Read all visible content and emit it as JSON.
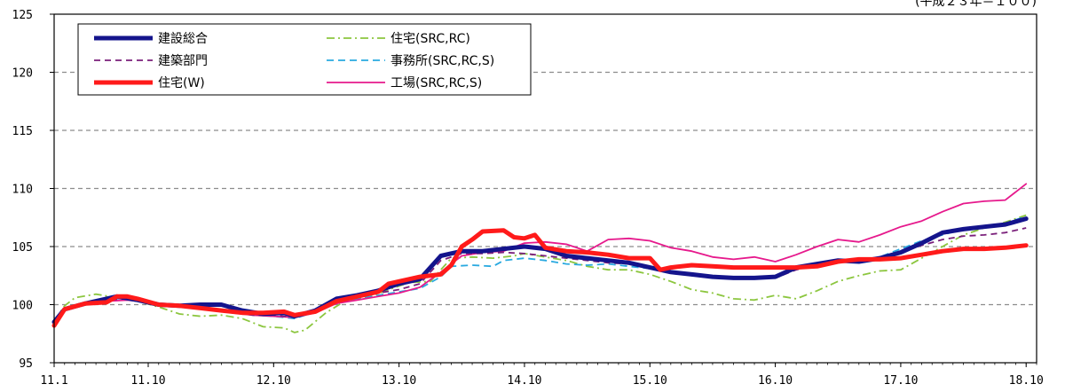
{
  "top_note": "(平成２３年＝１００)",
  "chart_data": {
    "type": "line",
    "title": "",
    "xlabel": "",
    "ylabel": "",
    "ylim": [
      95,
      125
    ],
    "yticks": [
      95,
      100,
      105,
      110,
      115,
      120,
      125
    ],
    "xlim": [
      0,
      94
    ],
    "xticks": [
      {
        "label": "11.1",
        "x": 0
      },
      {
        "label": "11.10",
        "x": 9
      },
      {
        "label": "12.10",
        "x": 21
      },
      {
        "label": "13.10",
        "x": 33
      },
      {
        "label": "14.10",
        "x": 45
      },
      {
        "label": "15.10",
        "x": 57
      },
      {
        "label": "16.10",
        "x": 69
      },
      {
        "label": "17.10",
        "x": 81
      },
      {
        "label": "18.10",
        "x": 93
      }
    ],
    "grid": "horizontal-dashed",
    "legend_position": "top-left",
    "series": [
      {
        "name": "建設総合",
        "color": "#14148c",
        "width": 5,
        "dash": "",
        "points": [
          [
            0,
            98.5
          ],
          [
            1,
            99.6
          ],
          [
            3,
            100.1
          ],
          [
            5,
            100.5
          ],
          [
            6,
            100.7
          ],
          [
            8,
            100.4
          ],
          [
            10,
            100.0
          ],
          [
            12,
            99.9
          ],
          [
            14,
            100.0
          ],
          [
            16,
            100.0
          ],
          [
            18,
            99.5
          ],
          [
            20,
            99.2
          ],
          [
            22,
            99.3
          ],
          [
            23,
            99.0
          ],
          [
            25,
            99.5
          ],
          [
            27,
            100.5
          ],
          [
            29,
            100.8
          ],
          [
            31,
            101.2
          ],
          [
            33,
            101.8
          ],
          [
            35,
            102.2
          ],
          [
            37,
            104.2
          ],
          [
            39,
            104.6
          ],
          [
            41,
            104.6
          ],
          [
            43,
            104.8
          ],
          [
            45,
            105.0
          ],
          [
            47,
            104.8
          ],
          [
            49,
            104.2
          ],
          [
            51,
            104.0
          ],
          [
            53,
            103.8
          ],
          [
            55,
            103.6
          ],
          [
            57,
            103.2
          ],
          [
            59,
            102.8
          ],
          [
            61,
            102.6
          ],
          [
            63,
            102.4
          ],
          [
            65,
            102.3
          ],
          [
            67,
            102.3
          ],
          [
            69,
            102.4
          ],
          [
            71,
            103.2
          ],
          [
            73,
            103.5
          ],
          [
            75,
            103.8
          ],
          [
            77,
            103.7
          ],
          [
            79,
            104.0
          ],
          [
            81,
            104.5
          ],
          [
            83,
            105.3
          ],
          [
            85,
            106.2
          ],
          [
            87,
            106.5
          ],
          [
            89,
            106.7
          ],
          [
            91,
            106.9
          ],
          [
            93,
            107.4
          ]
        ]
      },
      {
        "name": "建築部門",
        "color": "#7a1f7a",
        "width": 1.8,
        "dash": "7,5",
        "points": [
          [
            0,
            98.5
          ],
          [
            1,
            99.6
          ],
          [
            3,
            100.1
          ],
          [
            5,
            100.4
          ],
          [
            7,
            100.5
          ],
          [
            9,
            100.2
          ],
          [
            11,
            100.0
          ],
          [
            13,
            99.8
          ],
          [
            15,
            99.6
          ],
          [
            17,
            99.4
          ],
          [
            19,
            99.1
          ],
          [
            21,
            99.1
          ],
          [
            23,
            98.9
          ],
          [
            25,
            99.5
          ],
          [
            27,
            100.3
          ],
          [
            29,
            100.6
          ],
          [
            31,
            101.0
          ],
          [
            33,
            101.3
          ],
          [
            35,
            101.8
          ],
          [
            37,
            103.8
          ],
          [
            39,
            104.4
          ],
          [
            41,
            104.4
          ],
          [
            43,
            104.5
          ],
          [
            45,
            104.4
          ],
          [
            47,
            104.2
          ],
          [
            49,
            104.0
          ],
          [
            51,
            103.8
          ],
          [
            53,
            103.6
          ],
          [
            55,
            103.5
          ],
          [
            57,
            103.2
          ],
          [
            59,
            102.8
          ],
          [
            61,
            102.5
          ],
          [
            63,
            102.3
          ],
          [
            65,
            102.3
          ],
          [
            67,
            102.3
          ],
          [
            69,
            102.3
          ],
          [
            71,
            103.0
          ],
          [
            73,
            103.4
          ],
          [
            75,
            103.7
          ],
          [
            77,
            103.7
          ],
          [
            79,
            104.0
          ],
          [
            81,
            104.5
          ],
          [
            83,
            105.1
          ],
          [
            85,
            105.6
          ],
          [
            87,
            105.9
          ],
          [
            89,
            106.0
          ],
          [
            91,
            106.2
          ],
          [
            93,
            106.6
          ]
        ]
      },
      {
        "name": "住宅(W)",
        "color": "#ff1a1a",
        "width": 5,
        "dash": "",
        "points": [
          [
            0,
            98.2
          ],
          [
            1,
            99.6
          ],
          [
            3,
            100.1
          ],
          [
            5,
            100.2
          ],
          [
            6,
            100.7
          ],
          [
            7,
            100.7
          ],
          [
            8,
            100.5
          ],
          [
            10,
            100.0
          ],
          [
            12,
            99.9
          ],
          [
            14,
            99.7
          ],
          [
            16,
            99.5
          ],
          [
            18,
            99.3
          ],
          [
            20,
            99.3
          ],
          [
            22,
            99.4
          ],
          [
            23,
            99.1
          ],
          [
            25,
            99.4
          ],
          [
            27,
            100.3
          ],
          [
            29,
            100.7
          ],
          [
            31,
            101.1
          ],
          [
            32,
            101.8
          ],
          [
            33,
            102.0
          ],
          [
            35,
            102.4
          ],
          [
            37,
            102.6
          ],
          [
            38,
            103.4
          ],
          [
            39,
            105.0
          ],
          [
            40,
            105.6
          ],
          [
            41,
            106.3
          ],
          [
            43,
            106.4
          ],
          [
            44,
            105.8
          ],
          [
            45,
            105.7
          ],
          [
            46,
            106.0
          ],
          [
            47,
            104.9
          ],
          [
            49,
            104.6
          ],
          [
            51,
            104.5
          ],
          [
            53,
            104.3
          ],
          [
            55,
            104.0
          ],
          [
            57,
            104.0
          ],
          [
            58,
            103.0
          ],
          [
            59,
            103.2
          ],
          [
            61,
            103.4
          ],
          [
            63,
            103.3
          ],
          [
            65,
            103.2
          ],
          [
            67,
            103.2
          ],
          [
            69,
            103.2
          ],
          [
            71,
            103.2
          ],
          [
            73,
            103.3
          ],
          [
            75,
            103.7
          ],
          [
            77,
            103.9
          ],
          [
            79,
            103.9
          ],
          [
            81,
            104.0
          ],
          [
            83,
            104.3
          ],
          [
            85,
            104.6
          ],
          [
            87,
            104.8
          ],
          [
            89,
            104.8
          ],
          [
            91,
            104.9
          ],
          [
            93,
            105.1
          ]
        ]
      },
      {
        "name": "住宅(SRC,RC)",
        "color": "#8cc63f",
        "width": 1.8,
        "dash": "9,4,2,4",
        "points": [
          [
            0,
            98.6
          ],
          [
            1,
            99.9
          ],
          [
            2,
            100.6
          ],
          [
            4,
            100.9
          ],
          [
            6,
            100.6
          ],
          [
            8,
            100.3
          ],
          [
            10,
            99.8
          ],
          [
            12,
            99.2
          ],
          [
            14,
            99.0
          ],
          [
            16,
            99.1
          ],
          [
            18,
            98.8
          ],
          [
            20,
            98.1
          ],
          [
            22,
            98.0
          ],
          [
            23,
            97.6
          ],
          [
            24,
            97.8
          ],
          [
            26,
            99.3
          ],
          [
            28,
            100.4
          ],
          [
            30,
            100.6
          ],
          [
            32,
            101.3
          ],
          [
            34,
            101.9
          ],
          [
            36,
            102.0
          ],
          [
            38,
            104.0
          ],
          [
            40,
            104.1
          ],
          [
            42,
            104.0
          ],
          [
            44,
            104.2
          ],
          [
            45,
            104.4
          ],
          [
            47,
            104.1
          ],
          [
            49,
            103.8
          ],
          [
            51,
            103.3
          ],
          [
            53,
            103.0
          ],
          [
            55,
            103.0
          ],
          [
            57,
            102.6
          ],
          [
            59,
            102.0
          ],
          [
            61,
            101.3
          ],
          [
            63,
            101.0
          ],
          [
            65,
            100.5
          ],
          [
            67,
            100.4
          ],
          [
            69,
            100.8
          ],
          [
            71,
            100.5
          ],
          [
            73,
            101.2
          ],
          [
            75,
            102.0
          ],
          [
            77,
            102.5
          ],
          [
            79,
            102.9
          ],
          [
            81,
            103.0
          ],
          [
            83,
            104.0
          ],
          [
            85,
            105.0
          ],
          [
            87,
            106.0
          ],
          [
            89,
            106.6
          ],
          [
            91,
            107.1
          ],
          [
            93,
            107.7
          ]
        ]
      },
      {
        "name": "事務所(SRC,RC,S)",
        "color": "#29a9e0",
        "width": 1.8,
        "dash": "8,5",
        "points": [
          [
            0,
            98.5
          ],
          [
            1,
            99.6
          ],
          [
            3,
            100.0
          ],
          [
            5,
            100.4
          ],
          [
            7,
            100.6
          ],
          [
            9,
            100.3
          ],
          [
            11,
            100.0
          ],
          [
            13,
            99.8
          ],
          [
            15,
            99.6
          ],
          [
            17,
            99.4
          ],
          [
            19,
            99.1
          ],
          [
            21,
            99.0
          ],
          [
            23,
            98.8
          ],
          [
            25,
            99.4
          ],
          [
            27,
            100.2
          ],
          [
            29,
            100.5
          ],
          [
            31,
            100.8
          ],
          [
            33,
            101.1
          ],
          [
            35,
            101.4
          ],
          [
            37,
            102.4
          ],
          [
            38,
            103.3
          ],
          [
            40,
            103.4
          ],
          [
            42,
            103.3
          ],
          [
            43,
            103.8
          ],
          [
            45,
            104.0
          ],
          [
            47,
            103.8
          ],
          [
            49,
            103.5
          ],
          [
            51,
            103.4
          ],
          [
            53,
            103.5
          ],
          [
            55,
            103.3
          ],
          [
            57,
            103.1
          ],
          [
            59,
            102.9
          ],
          [
            61,
            102.6
          ],
          [
            63,
            102.4
          ],
          [
            65,
            102.3
          ],
          [
            67,
            102.4
          ],
          [
            69,
            102.5
          ],
          [
            71,
            103.2
          ],
          [
            73,
            103.6
          ],
          [
            75,
            103.8
          ],
          [
            77,
            103.8
          ],
          [
            79,
            104.1
          ],
          [
            81,
            104.8
          ],
          [
            83,
            105.5
          ],
          [
            85,
            106.0
          ],
          [
            87,
            106.5
          ],
          [
            89,
            106.8
          ],
          [
            91,
            107.0
          ],
          [
            93,
            107.6
          ]
        ]
      },
      {
        "name": "工場(SRC,RC,S)",
        "color": "#e6198c",
        "width": 1.8,
        "dash": "",
        "points": [
          [
            0,
            98.4
          ],
          [
            1,
            99.5
          ],
          [
            3,
            100.0
          ],
          [
            5,
            100.3
          ],
          [
            7,
            100.4
          ],
          [
            9,
            100.2
          ],
          [
            11,
            100.0
          ],
          [
            13,
            99.8
          ],
          [
            15,
            99.6
          ],
          [
            17,
            99.3
          ],
          [
            19,
            99.1
          ],
          [
            21,
            99.0
          ],
          [
            23,
            98.9
          ],
          [
            25,
            99.3
          ],
          [
            27,
            100.1
          ],
          [
            29,
            100.4
          ],
          [
            31,
            100.7
          ],
          [
            33,
            101.0
          ],
          [
            35,
            101.5
          ],
          [
            37,
            102.8
          ],
          [
            39,
            104.2
          ],
          [
            41,
            104.5
          ],
          [
            43,
            104.6
          ],
          [
            45,
            105.3
          ],
          [
            47,
            105.4
          ],
          [
            49,
            105.2
          ],
          [
            51,
            104.6
          ],
          [
            53,
            105.6
          ],
          [
            55,
            105.7
          ],
          [
            57,
            105.5
          ],
          [
            59,
            104.9
          ],
          [
            61,
            104.6
          ],
          [
            63,
            104.1
          ],
          [
            65,
            103.9
          ],
          [
            67,
            104.1
          ],
          [
            69,
            103.7
          ],
          [
            71,
            104.3
          ],
          [
            73,
            105.0
          ],
          [
            75,
            105.6
          ],
          [
            77,
            105.4
          ],
          [
            79,
            106.0
          ],
          [
            81,
            106.7
          ],
          [
            83,
            107.2
          ],
          [
            85,
            108.0
          ],
          [
            87,
            108.7
          ],
          [
            89,
            108.9
          ],
          [
            91,
            109.0
          ],
          [
            93,
            110.4
          ]
        ]
      }
    ]
  }
}
